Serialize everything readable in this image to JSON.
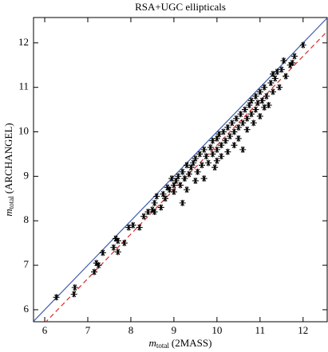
{
  "chart_data": {
    "type": "scatter",
    "title": "RSA+UGC ellipticals",
    "xlabel": {
      "var": "m",
      "sub": "total",
      "text": "(2MASS)"
    },
    "ylabel": {
      "var": "m",
      "sub": "total",
      "text": "(ARCHANGEL)"
    },
    "xlim": [
      5.74,
      12.56
    ],
    "ylim": [
      5.73,
      12.57
    ],
    "xticks": [
      6,
      7,
      8,
      9,
      10,
      11,
      12
    ],
    "yticks": [
      6,
      7,
      8,
      9,
      10,
      11,
      12
    ],
    "marker": "asterisk",
    "color": "#000000",
    "reference_lines": [
      {
        "intercept": 0,
        "color": "#3b5bab",
        "dashed": false
      },
      {
        "intercept": -0.3,
        "color": "#d42a2a",
        "dashed": true
      }
    ],
    "x": [
      6.27,
      6.68,
      6.7,
      7.15,
      7.2,
      7.25,
      7.35,
      7.6,
      7.65,
      7.7,
      7.7,
      7.85,
      7.95,
      8.05,
      8.2,
      8.3,
      8.4,
      8.5,
      8.55,
      8.6,
      8.7,
      8.75,
      8.8,
      8.85,
      8.9,
      8.95,
      9.0,
      9.0,
      9.05,
      9.1,
      9.15,
      9.2,
      9.25,
      9.3,
      9.3,
      9.35,
      9.4,
      9.45,
      9.5,
      9.5,
      9.55,
      9.6,
      9.65,
      9.7,
      9.7,
      9.75,
      9.8,
      9.85,
      9.9,
      9.9,
      9.95,
      10.0,
      10.0,
      10.05,
      10.1,
      10.1,
      10.15,
      10.2,
      10.25,
      10.25,
      10.3,
      10.35,
      10.4,
      10.4,
      10.45,
      10.5,
      10.5,
      10.55,
      10.6,
      10.6,
      10.65,
      10.7,
      10.7,
      10.75,
      10.8,
      10.8,
      10.85,
      10.9,
      10.9,
      10.95,
      11.0,
      11.0,
      11.05,
      11.1,
      11.1,
      11.15,
      11.2,
      11.25,
      11.3,
      11.3,
      11.35,
      11.4,
      11.45,
      11.5,
      11.55,
      11.6,
      11.7,
      11.75,
      11.8,
      12.0,
      10.0,
      9.2,
      8.55
    ],
    "y": [
      6.28,
      6.35,
      6.5,
      6.85,
      7.05,
      7.0,
      7.28,
      7.4,
      7.6,
      7.55,
      7.3,
      7.5,
      7.85,
      7.9,
      7.85,
      8.1,
      8.2,
      8.25,
      8.4,
      8.55,
      8.3,
      8.6,
      8.5,
      8.75,
      8.7,
      8.95,
      8.65,
      8.8,
      8.9,
      9.0,
      8.8,
      9.1,
      8.95,
      9.25,
      8.7,
      9.05,
      9.2,
      9.3,
      8.9,
      9.4,
      9.1,
      9.5,
      9.25,
      9.6,
      8.95,
      9.45,
      9.3,
      9.65,
      9.5,
      9.8,
      9.2,
      9.6,
      9.85,
      9.95,
      9.45,
      9.7,
      10.0,
      9.8,
      9.55,
      10.1,
      9.9,
      10.2,
      9.7,
      10.0,
      10.3,
      10.1,
      9.85,
      10.4,
      10.2,
      9.6,
      10.5,
      10.3,
      10.05,
      10.6,
      10.4,
      10.7,
      10.2,
      10.5,
      10.8,
      10.65,
      10.35,
      10.9,
      10.7,
      10.55,
      11.0,
      10.8,
      10.6,
      11.1,
      10.9,
      11.3,
      11.2,
      11.35,
      11.0,
      11.4,
      11.6,
      11.25,
      11.5,
      11.55,
      11.7,
      11.95,
      9.35,
      8.4,
      8.2
    ]
  }
}
